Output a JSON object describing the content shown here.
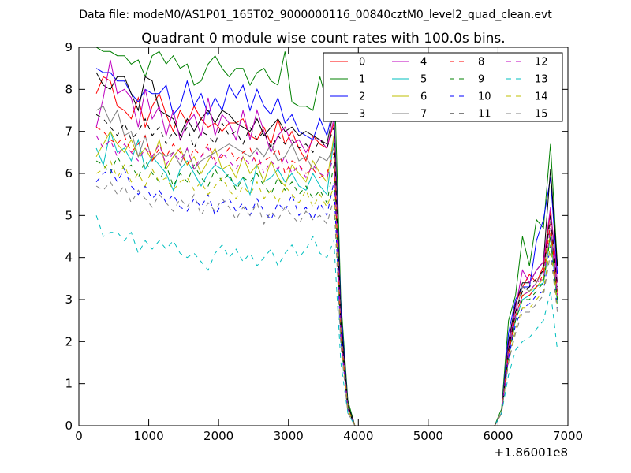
{
  "chart_data": {
    "type": "line",
    "suptitle": "Data file: modeM0/AS1P01_165T02_9000000116_00840cztM0_level2_quad_clean.evt",
    "title": "Quadrant 0 module wise count rates with 100.0s bins.",
    "xlabel": "",
    "ylabel": "",
    "x_offset_label": "+1.86001e8",
    "xlim": [
      0,
      7000
    ],
    "ylim": [
      0,
      9
    ],
    "xticks": [
      "0",
      "1000",
      "2000",
      "3000",
      "4000",
      "5000",
      "6000",
      "7000"
    ],
    "yticks": [
      "0",
      "1",
      "2",
      "3",
      "4",
      "5",
      "6",
      "7",
      "8",
      "9"
    ],
    "grid": false,
    "legend": {
      "position": "top-right",
      "columns": 4
    },
    "x": [
      250,
      350,
      450,
      550,
      650,
      750,
      850,
      950,
      1050,
      1150,
      1250,
      1350,
      1450,
      1550,
      1650,
      1750,
      1850,
      1950,
      2050,
      2150,
      2250,
      2350,
      2450,
      2550,
      2650,
      2750,
      2850,
      2950,
      3050,
      3150,
      3250,
      3350,
      3450,
      3550,
      3650,
      3750,
      3850,
      3950,
      4050,
      4150,
      4250,
      4350,
      4450,
      4550,
      4650,
      4750,
      4850,
      4950,
      5050,
      5150,
      5250,
      5350,
      5450,
      5550,
      5650,
      5750,
      5850,
      5950,
      6050,
      6150,
      6250,
      6350,
      6450,
      6550,
      6650,
      6750,
      6850
    ],
    "series": [
      {
        "name": "0",
        "color": "#ff0000",
        "dash": "solid",
        "values": [
          7.9,
          8.3,
          8.2,
          7.6,
          7.5,
          7.3,
          7.8,
          7.1,
          7.6,
          7.9,
          7.4,
          7.0,
          7.5,
          7.2,
          7.6,
          7.3,
          7.1,
          7.2,
          7.0,
          7.2,
          7.2,
          7.3,
          6.9,
          6.8,
          7.1,
          6.7,
          7.3,
          6.7,
          7.0,
          6.6,
          6.3,
          6.9,
          6.7,
          6.6,
          7.2,
          2.5,
          0.5,
          0,
          0,
          0,
          0,
          0,
          0,
          0,
          0,
          0,
          0,
          0,
          0,
          0,
          0,
          0,
          0,
          0,
          0,
          0,
          0,
          0,
          0.3,
          1.9,
          2.9,
          3.3,
          3.6,
          3.4,
          3.8,
          5.1,
          3.6
        ]
      },
      {
        "name": "1",
        "color": "#008000",
        "dash": "solid",
        "values": [
          9.0,
          8.9,
          8.9,
          8.8,
          8.8,
          8.6,
          8.7,
          8.3,
          8.8,
          8.9,
          8.6,
          8.8,
          8.5,
          8.6,
          8.1,
          8.2,
          8.6,
          8.8,
          8.5,
          8.3,
          8.5,
          8.5,
          8.1,
          8.4,
          8.5,
          8.2,
          8.1,
          8.9,
          7.7,
          7.6,
          7.6,
          7.5,
          8.3,
          7.7,
          8.6,
          3.0,
          0.6,
          0,
          0,
          0,
          0,
          0,
          0,
          0,
          0,
          0,
          0,
          0,
          0,
          0,
          0,
          0,
          0,
          0,
          0,
          0,
          0,
          0,
          0.4,
          2.5,
          3.1,
          4.5,
          3.8,
          4.9,
          4.7,
          6.7,
          3.8
        ]
      },
      {
        "name": "2",
        "color": "#0000ff",
        "dash": "solid",
        "values": [
          8.5,
          8.4,
          8.4,
          8.2,
          8.2,
          7.9,
          7.7,
          8.0,
          7.9,
          7.9,
          8.1,
          7.4,
          7.6,
          8.2,
          7.6,
          7.9,
          7.4,
          7.8,
          7.5,
          8.1,
          7.8,
          8.1,
          7.5,
          8.0,
          7.6,
          7.4,
          7.8,
          7.2,
          7.4,
          7.0,
          6.9,
          6.8,
          7.3,
          6.9,
          7.6,
          2.8,
          0.5,
          0,
          0,
          0,
          0,
          0,
          0,
          0,
          0,
          0,
          0,
          0,
          0,
          0,
          0,
          0,
          0,
          0,
          0,
          0,
          0,
          0,
          0.3,
          2.2,
          3.0,
          3.3,
          3.3,
          4.4,
          4.9,
          5.9,
          3.6
        ]
      },
      {
        "name": "3",
        "color": "#000000",
        "dash": "solid",
        "values": [
          8.4,
          8.1,
          8.0,
          8.3,
          8.3,
          7.9,
          7.5,
          8.3,
          8.2,
          7.5,
          7.4,
          7.3,
          6.9,
          7.3,
          7.0,
          7.3,
          7.5,
          7.2,
          7.5,
          7.4,
          7.2,
          7.1,
          7.0,
          7.3,
          6.9,
          7.1,
          7.3,
          7.0,
          7.1,
          6.9,
          7.0,
          6.9,
          6.8,
          6.7,
          7.5,
          2.6,
          0.5,
          0,
          0,
          0,
          0,
          0,
          0,
          0,
          0,
          0,
          0,
          0,
          0,
          0,
          0,
          0,
          0,
          0,
          0,
          0,
          0,
          0,
          0.3,
          2.0,
          2.9,
          3.4,
          3.4,
          3.7,
          3.9,
          6.1,
          3.8
        ]
      },
      {
        "name": "4",
        "color": "#bf00bf",
        "dash": "solid",
        "values": [
          7.1,
          7.8,
          8.7,
          7.9,
          8.0,
          7.8,
          7.1,
          8.0,
          7.3,
          7.6,
          6.9,
          7.5,
          6.8,
          7.2,
          7.4,
          6.9,
          7.8,
          6.9,
          7.4,
          7.2,
          6.8,
          7.5,
          6.8,
          7.5,
          7.0,
          6.5,
          6.9,
          7.1,
          6.7,
          6.8,
          6.5,
          6.8,
          6.8,
          6.6,
          7.3,
          2.4,
          0.4,
          0,
          0,
          0,
          0,
          0,
          0,
          0,
          0,
          0,
          0,
          0,
          0,
          0,
          0,
          0,
          0,
          0,
          0,
          0,
          0,
          0,
          0.3,
          1.9,
          2.8,
          3.7,
          3.4,
          3.7,
          3.9,
          5.2,
          3.4
        ]
      },
      {
        "name": "5",
        "color": "#00bfbf",
        "dash": "solid",
        "values": [
          6.6,
          6.2,
          7.0,
          6.5,
          6.6,
          6.3,
          6.8,
          6.1,
          6.4,
          6.2,
          6.0,
          5.6,
          6.1,
          6.3,
          6.0,
          5.7,
          6.0,
          6.2,
          6.1,
          5.9,
          5.7,
          5.9,
          5.5,
          6.2,
          5.8,
          5.9,
          6.1,
          5.8,
          6.0,
          5.7,
          5.6,
          6.0,
          5.7,
          5.5,
          6.8,
          2.2,
          0.4,
          0,
          0,
          0,
          0,
          0,
          0,
          0,
          0,
          0,
          0,
          0,
          0,
          0,
          0,
          0,
          0,
          0,
          0,
          0,
          0,
          0,
          0.3,
          1.7,
          2.5,
          3.0,
          3.1,
          3.3,
          3.4,
          4.5,
          2.9
        ]
      },
      {
        "name": "6",
        "color": "#bfbf00",
        "dash": "solid",
        "values": [
          6.4,
          6.7,
          7.0,
          6.7,
          6.5,
          6.8,
          6.4,
          6.6,
          6.3,
          6.8,
          6.1,
          6.4,
          6.6,
          6.2,
          6.4,
          6.0,
          6.3,
          6.6,
          6.1,
          6.2,
          5.9,
          6.4,
          6.0,
          6.2,
          5.8,
          6.3,
          5.9,
          5.7,
          6.2,
          6.0,
          5.8,
          6.3,
          6.0,
          5.8,
          6.9,
          2.3,
          0.4,
          0,
          0,
          0,
          0,
          0,
          0,
          0,
          0,
          0,
          0,
          0,
          0,
          0,
          0,
          0,
          0,
          0,
          0,
          0,
          0,
          0,
          0.3,
          1.8,
          2.6,
          3.1,
          3.2,
          3.3,
          3.5,
          4.6,
          3.0
        ]
      },
      {
        "name": "7",
        "color": "#7f7f7f",
        "dash": "solid",
        "values": [
          7.5,
          7.6,
          7.2,
          7.5,
          6.9,
          7.0,
          6.4,
          6.9,
          6.3,
          6.5,
          6.4,
          6.5,
          6.2,
          6.6,
          6.1,
          6.3,
          6.4,
          6.5,
          6.6,
          6.7,
          6.6,
          6.5,
          6.4,
          6.6,
          6.4,
          6.7,
          6.3,
          6.4,
          6.7,
          6.3,
          6.4,
          6.1,
          6.4,
          6.3,
          6.6,
          2.4,
          0.4,
          0,
          0,
          0,
          0,
          0,
          0,
          0,
          0,
          0,
          0,
          0,
          0,
          0,
          0,
          0,
          0,
          0,
          0,
          0,
          0,
          0,
          0.3,
          1.8,
          2.7,
          3.3,
          3.2,
          3.4,
          3.7,
          4.9,
          3.2
        ]
      },
      {
        "name": "8",
        "color": "#ff0000",
        "dash": "dashed",
        "values": [
          7.1,
          7.0,
          6.8,
          6.7,
          6.9,
          6.5,
          6.7,
          6.9,
          6.3,
          6.6,
          6.4,
          6.7,
          6.5,
          6.2,
          6.6,
          6.4,
          6.7,
          6.3,
          6.4,
          6.6,
          6.3,
          6.5,
          6.6,
          6.2,
          6.3,
          6.4,
          6.6,
          6.0,
          6.3,
          6.2,
          6.0,
          6.1,
          5.9,
          6.0,
          6.5,
          2.2,
          0.4,
          0,
          0,
          0,
          0,
          0,
          0,
          0,
          0,
          0,
          0,
          0,
          0,
          0,
          0,
          0,
          0,
          0,
          0,
          0,
          0,
          0,
          0.3,
          1.7,
          2.6,
          3.1,
          3.1,
          3.3,
          3.6,
          4.8,
          3.1
        ]
      },
      {
        "name": "9",
        "color": "#008000",
        "dash": "dashed",
        "values": [
          6.3,
          6.2,
          6.0,
          6.4,
          6.1,
          6.2,
          5.9,
          6.3,
          6.0,
          5.8,
          6.2,
          5.7,
          6.0,
          5.8,
          6.2,
          5.9,
          5.7,
          6.1,
          5.8,
          6.0,
          5.6,
          5.9,
          5.8,
          6.0,
          5.7,
          5.5,
          5.9,
          5.6,
          5.8,
          5.5,
          5.7,
          5.4,
          5.6,
          5.3,
          6.2,
          2.1,
          0.4,
          0,
          0,
          0,
          0,
          0,
          0,
          0,
          0,
          0,
          0,
          0,
          0,
          0,
          0,
          0,
          0,
          0,
          0,
          0,
          0,
          0,
          0.3,
          1.6,
          2.5,
          3.0,
          3.0,
          3.2,
          3.4,
          4.5,
          3.0
        ]
      },
      {
        "name": "10",
        "color": "#0000ff",
        "dash": "dashed",
        "values": [
          5.8,
          6.0,
          6.1,
          5.8,
          6.1,
          5.7,
          5.5,
          5.7,
          5.4,
          5.6,
          5.3,
          5.5,
          5.2,
          5.1,
          5.4,
          5.2,
          5.5,
          5.0,
          5.3,
          5.4,
          5.1,
          5.3,
          5.0,
          5.4,
          5.1,
          4.9,
          5.3,
          5.1,
          5.5,
          5.0,
          5.2,
          4.9,
          5.3,
          5.0,
          5.8,
          2.0,
          0.4,
          0,
          0,
          0,
          0,
          0,
          0,
          0,
          0,
          0,
          0,
          0,
          0,
          0,
          0,
          0,
          0,
          0,
          0,
          0,
          0,
          0,
          0.3,
          1.6,
          2.4,
          2.8,
          2.9,
          3.1,
          3.2,
          4.3,
          2.8
        ]
      },
      {
        "name": "11",
        "color": "#000000",
        "dash": "dashed",
        "values": [
          7.4,
          7.3,
          7.1,
          6.9,
          7.2,
          6.8,
          7.0,
          7.3,
          6.9,
          7.1,
          6.7,
          7.0,
          6.8,
          7.1,
          6.6,
          7.0,
          6.9,
          6.7,
          7.2,
          6.9,
          7.0,
          6.7,
          7.1,
          6.8,
          7.0,
          6.6,
          6.9,
          6.7,
          6.8,
          6.6,
          6.7,
          6.5,
          6.8,
          6.6,
          7.1,
          2.4,
          0.4,
          0,
          0,
          0,
          0,
          0,
          0,
          0,
          0,
          0,
          0,
          0,
          0,
          0,
          0,
          0,
          0,
          0,
          0,
          0,
          0,
          0,
          0.3,
          1.8,
          2.7,
          3.2,
          3.3,
          3.5,
          3.7,
          5.0,
          3.3
        ]
      },
      {
        "name": "12",
        "color": "#bf00bf",
        "dash": "dashed",
        "values": [
          6.9,
          6.6,
          6.8,
          6.4,
          6.7,
          6.5,
          6.3,
          6.6,
          6.4,
          6.7,
          6.2,
          6.5,
          6.3,
          6.6,
          6.1,
          6.4,
          6.6,
          6.2,
          6.5,
          6.3,
          6.1,
          6.4,
          6.2,
          6.5,
          6.0,
          6.3,
          6.1,
          6.4,
          6.0,
          6.2,
          5.9,
          6.2,
          6.0,
          5.9,
          6.4,
          2.2,
          0.4,
          0,
          0,
          0,
          0,
          0,
          0,
          0,
          0,
          0,
          0,
          0,
          0,
          0,
          0,
          0,
          0,
          0,
          0,
          0,
          0,
          0,
          0.3,
          1.7,
          2.6,
          3.1,
          3.2,
          3.4,
          3.5,
          4.7,
          3.1
        ]
      },
      {
        "name": "13",
        "color": "#00bfbf",
        "dash": "dashed",
        "values": [
          5.0,
          4.5,
          4.6,
          4.6,
          4.4,
          4.6,
          4.1,
          4.4,
          4.2,
          4.4,
          4.2,
          4.4,
          4.1,
          4.0,
          4.1,
          3.9,
          3.7,
          4.1,
          4.3,
          4.0,
          4.2,
          3.9,
          4.1,
          3.8,
          4.0,
          4.2,
          3.8,
          4.1,
          4.3,
          4.0,
          4.2,
          4.5,
          4.1,
          4.0,
          4.4,
          1.5,
          0.3,
          0,
          0,
          0,
          0,
          0,
          0,
          0,
          0,
          0,
          0,
          0,
          0,
          0,
          0,
          0,
          0,
          0,
          0,
          0,
          0,
          0,
          0.3,
          1.2,
          1.8,
          2.0,
          2.1,
          2.3,
          2.5,
          3.2,
          1.8
        ]
      },
      {
        "name": "14",
        "color": "#bfbf00",
        "dash": "dashed",
        "values": [
          6.0,
          6.1,
          6.3,
          5.9,
          6.2,
          5.8,
          6.0,
          5.7,
          6.1,
          5.8,
          5.9,
          5.6,
          5.8,
          5.9,
          5.6,
          5.8,
          5.5,
          5.7,
          5.9,
          5.6,
          5.4,
          5.7,
          5.5,
          5.8,
          5.4,
          5.6,
          5.3,
          5.7,
          5.5,
          5.3,
          5.6,
          5.2,
          5.5,
          5.2,
          5.7,
          2.0,
          0.4,
          0,
          0,
          0,
          0,
          0,
          0,
          0,
          0,
          0,
          0,
          0,
          0,
          0,
          0,
          0,
          0,
          0,
          0,
          0,
          0,
          0,
          0.3,
          1.5,
          2.3,
          2.8,
          2.8,
          3.0,
          3.2,
          4.3,
          2.8
        ]
      },
      {
        "name": "15",
        "color": "#7f7f7f",
        "dash": "dashed",
        "values": [
          5.7,
          5.6,
          5.8,
          5.5,
          5.7,
          5.3,
          5.6,
          5.4,
          5.2,
          5.5,
          5.3,
          5.1,
          5.4,
          5.2,
          5.5,
          5.0,
          5.3,
          5.1,
          5.4,
          5.2,
          4.9,
          5.2,
          5.0,
          5.3,
          4.8,
          5.1,
          4.9,
          5.2,
          5.0,
          4.8,
          5.1,
          4.9,
          5.0,
          4.8,
          5.4,
          1.9,
          0.3,
          0,
          0,
          0,
          0,
          0,
          0,
          0,
          0,
          0,
          0,
          0,
          0,
          0,
          0,
          0,
          0,
          0,
          0,
          0,
          0,
          0,
          0.3,
          1.5,
          2.2,
          2.7,
          2.7,
          2.9,
          3.1,
          4.1,
          2.7
        ]
      }
    ]
  }
}
